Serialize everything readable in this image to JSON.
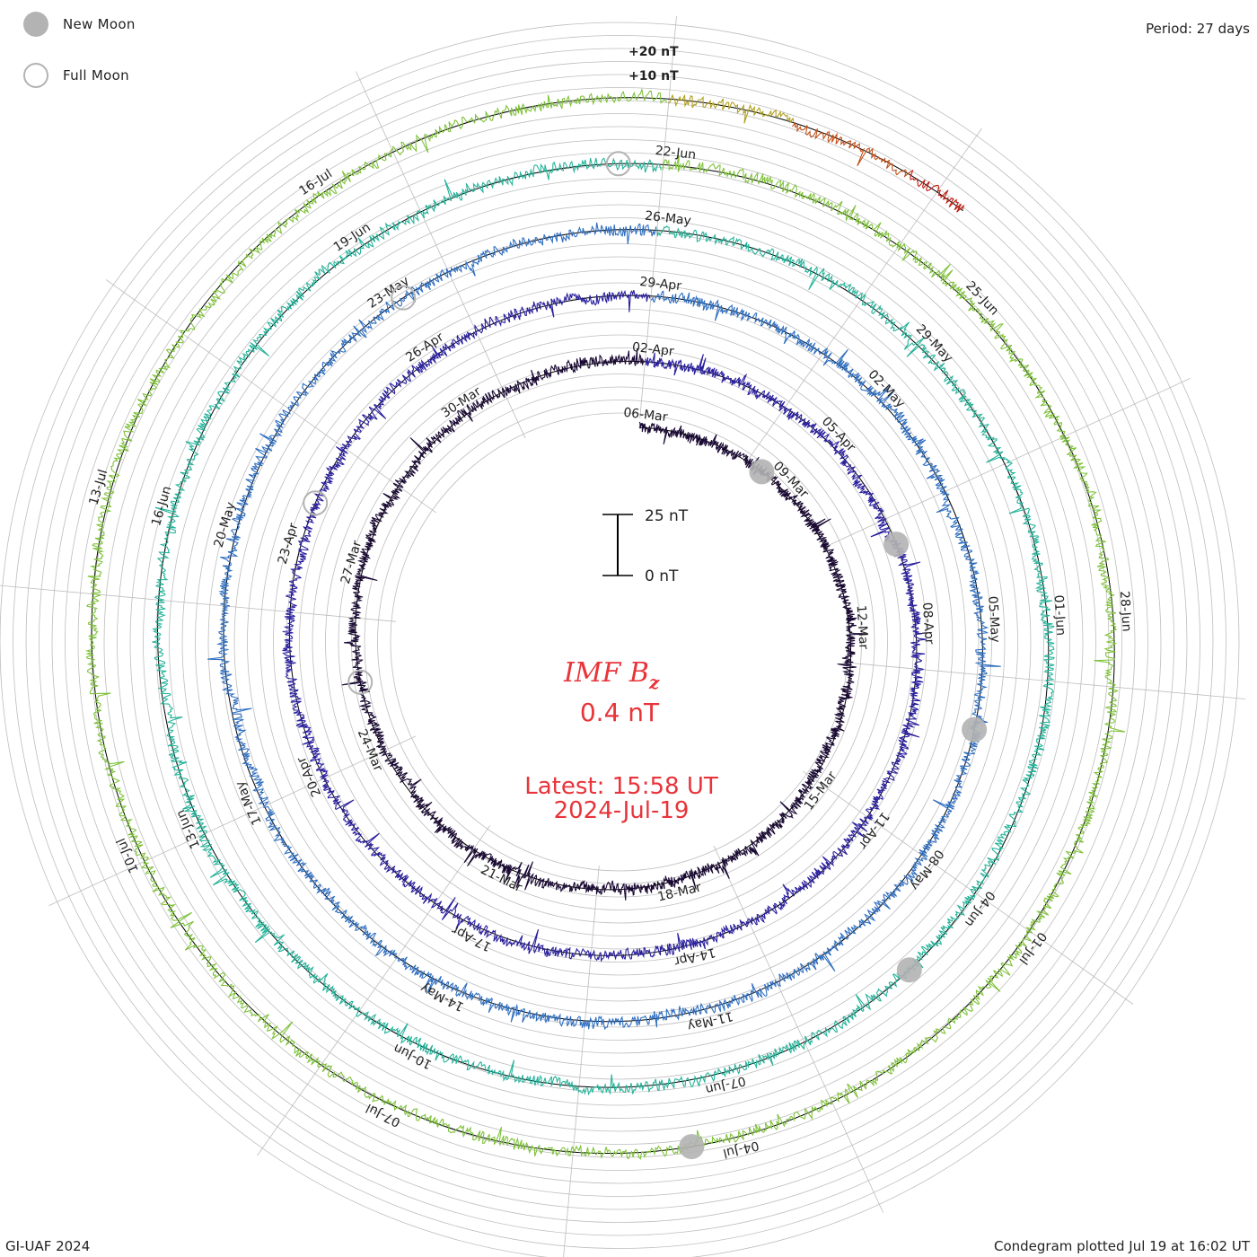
{
  "chart_data": {
    "type": "line",
    "title": "IMF Bz",
    "title_main": "IMF B",
    "title_sub": "z",
    "current_value": "0.4 nT",
    "latest_time": "Latest: 15:58 UT",
    "latest_date": "2024-Jul-19",
    "period": "Period: 27 days",
    "scale_bar": {
      "top_label": "25 nT",
      "bottom_label": "0 nT",
      "span_nT": 25
    },
    "ring_offset_labels": [
      "+20 nT",
      "+10 nT"
    ],
    "legend": [
      {
        "name": "New Moon",
        "symbol": "filled-circle"
      },
      {
        "name": "Full Moon",
        "symbol": "open-circle"
      }
    ],
    "rotations": [
      {
        "name": "rotation-1",
        "color": "#1a0a33",
        "start_day": 0,
        "end_day": 27,
        "dates": [
          "06-Mar",
          "09-Mar",
          "12-Mar",
          "15-Mar",
          "18-Mar",
          "21-Mar",
          "24-Mar",
          "27-Mar",
          "30-Mar"
        ]
      },
      {
        "name": "rotation-2",
        "color": "#2a1f9e",
        "start_day": 27,
        "end_day": 54,
        "dates": [
          "02-Apr",
          "05-Apr",
          "08-Apr",
          "11-Apr",
          "14-Apr",
          "17-Apr",
          "20-Apr",
          "23-Apr",
          "26-Apr"
        ]
      },
      {
        "name": "rotation-3",
        "color": "#2f6fc0",
        "start_day": 54,
        "end_day": 81,
        "dates": [
          "29-Apr",
          "02-May",
          "05-May",
          "08-May",
          "11-May",
          "14-May",
          "17-May",
          "20-May",
          "23-May"
        ]
      },
      {
        "name": "rotation-4",
        "color": "#25b39a",
        "start_day": 81,
        "end_day": 108,
        "dates": [
          "26-May",
          "29-May",
          "01-Jun",
          "04-Jun",
          "07-Jun",
          "10-Jun",
          "13-Jun",
          "16-Jun",
          "19-Jun"
        ]
      },
      {
        "name": "rotation-5",
        "color": "#7fc23a",
        "start_day": 108,
        "end_day": 135,
        "dates": [
          "22-Jun",
          "25-Jun",
          "28-Jun",
          "01-Jul",
          "04-Jul",
          "07-Jul",
          "10-Jul",
          "13-Jul",
          "16-Jul"
        ]
      },
      {
        "name": "rotation-6",
        "color": "#b0a020",
        "start_day": 135,
        "end_day": 136
      },
      {
        "name": "rotation-7",
        "color": "#c05018",
        "start_day": 136,
        "end_day": 137
      },
      {
        "name": "rotation-8",
        "color": "#c01a10",
        "start_day": 137,
        "end_day": 137.5
      }
    ],
    "new_moon_days": [
      2.6,
      31.9,
      61.4,
      91.0,
      120.5
    ],
    "full_moon_days": [
      19.2,
      48.7,
      78.2,
      107.6
    ],
    "grid": true
  },
  "footer": {
    "left": "GI-UAF 2024",
    "right": "Condegram plotted Jul 19 at 16:02 UT"
  },
  "colors": {
    "title": "#e8343a",
    "text": "#222222",
    "grid": "#bdbdbd",
    "moon": "#b3b3b3"
  }
}
